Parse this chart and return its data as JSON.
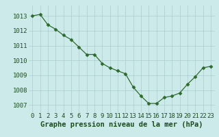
{
  "x": [
    0,
    1,
    2,
    3,
    4,
    5,
    6,
    7,
    8,
    9,
    10,
    11,
    12,
    13,
    14,
    15,
    16,
    17,
    18,
    19,
    20,
    21,
    22,
    23
  ],
  "y": [
    1013.0,
    1013.1,
    1012.4,
    1012.1,
    1011.7,
    1011.4,
    1010.9,
    1010.4,
    1010.4,
    1009.8,
    1009.5,
    1009.3,
    1009.1,
    1008.2,
    1007.6,
    1007.1,
    1007.1,
    1007.5,
    1007.6,
    1007.8,
    1008.4,
    1008.9,
    1009.5,
    1009.6
  ],
  "line_color": "#2d6a2d",
  "marker": "D",
  "marker_size": 2.5,
  "bg_color": "#cceaea",
  "grid_color": "#aacccc",
  "xlabel": "Graphe pression niveau de la mer (hPa)",
  "xlabel_fontsize": 7.5,
  "tick_color": "#1a4d1a",
  "tick_fontsize": 6.5,
  "ylim_min": 1006.5,
  "ylim_max": 1013.7,
  "yticks": [
    1007,
    1008,
    1009,
    1010,
    1011,
    1012,
    1013
  ],
  "xticks": [
    0,
    1,
    2,
    3,
    4,
    5,
    6,
    7,
    8,
    9,
    10,
    11,
    12,
    13,
    14,
    15,
    16,
    17,
    18,
    19,
    20,
    21,
    22,
    23
  ]
}
